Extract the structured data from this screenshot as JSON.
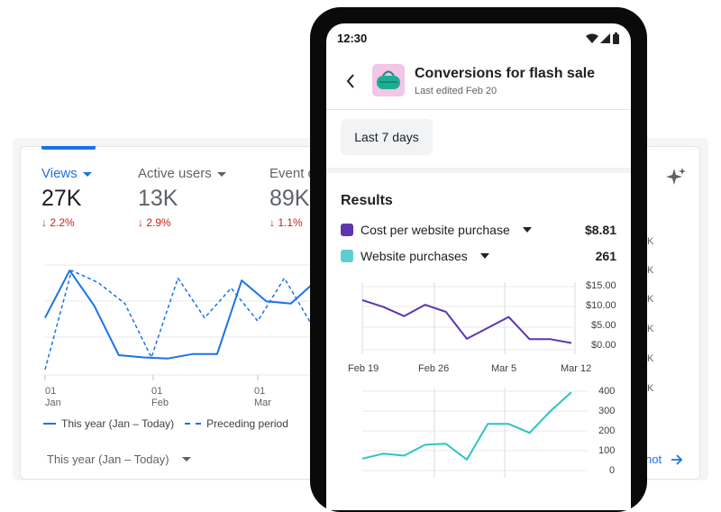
{
  "desktop": {
    "metrics": [
      {
        "label": "Views",
        "value": "27K",
        "delta": "2.2%"
      },
      {
        "label": "Active users",
        "value": "13K",
        "delta": "2.9%"
      },
      {
        "label": "Event c",
        "value": "89K",
        "delta": "1.1%"
      }
    ],
    "x_ticks": [
      {
        "day": "01",
        "month": "Jan"
      },
      {
        "day": "01",
        "month": "Feb"
      },
      {
        "day": "01",
        "month": "Mar"
      }
    ],
    "legend": {
      "this_year": "This year (Jan – Today)",
      "preceding": "Preceding period"
    },
    "range_select": "This year (Jan – Today)",
    "right_ticks": [
      "K",
      "K",
      "K",
      "K",
      "K",
      "K"
    ],
    "snapshot_link": "hot",
    "colors": {
      "primary": "#1a73e8",
      "delta_down": "#c5221f"
    },
    "icons": {
      "sparkle": "sparkle-icon",
      "arrow": "arrow-right-icon"
    },
    "chart_data": {
      "type": "line",
      "series": [
        {
          "name": "This year (Jan – Today)",
          "values": [
            0.52,
            0.95,
            0.63,
            0.18,
            0.16,
            0.15,
            0.19,
            0.19,
            0.86,
            0.67,
            0.65,
            0.85
          ]
        },
        {
          "name": "Preceding period",
          "values": [
            0.05,
            0.95,
            0.84,
            0.65,
            0.16,
            0.88,
            0.52,
            0.79,
            0.49,
            0.88,
            0.47
          ]
        }
      ]
    }
  },
  "phone": {
    "status_time": "12:30",
    "card_title": "Conversions for flash sale",
    "card_subtitle": "Last edited Feb 20",
    "period_chip": "Last 7 days",
    "results_title": "Results",
    "metrics": [
      {
        "label": "Cost per website purchase",
        "value": "$8.81",
        "color": "#5e35b1"
      },
      {
        "label": "Website purchases",
        "value": "261",
        "color": "#5fcdcd"
      }
    ],
    "icons": {
      "back": "back-arrow-icon",
      "wifi": "wifi-icon",
      "signal": "signal-icon",
      "battery": "battery-icon",
      "product": "duffel-bag-icon"
    },
    "chart_data": [
      {
        "type": "line",
        "y_ticks": [
          "$15.00",
          "$10.00",
          "$5.00",
          "$0.00"
        ],
        "ylim": [
          0,
          15
        ],
        "series": [
          {
            "name": "Cost per website purchase",
            "values": [
              11.8,
              10.2,
              8.0,
              10.7,
              9.0,
              2.6,
              5.2,
              7.8,
              2.5,
              2.5,
              1.6
            ],
            "color": "#5e35b1"
          }
        ]
      },
      {
        "type": "line",
        "x_ticks": [
          "Feb 19",
          "Feb 26",
          "Mar 5",
          "Mar 12"
        ],
        "y_ticks": [
          "400",
          "300",
          "200",
          "100",
          "0"
        ],
        "ylim": [
          0,
          400
        ],
        "series": [
          {
            "name": "Website purchases",
            "values": [
              60,
              85,
              75,
              130,
              135,
              55,
              235,
              235,
              190,
              300,
              395
            ],
            "color": "#2ec4c4"
          }
        ]
      }
    ]
  }
}
